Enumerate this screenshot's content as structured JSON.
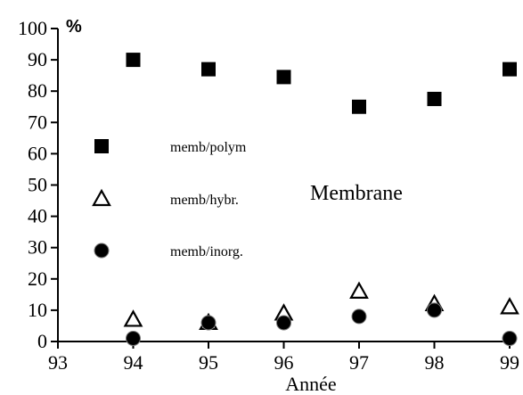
{
  "chart_data": {
    "type": "scatter",
    "title": "",
    "xlabel": "Année",
    "ylabel": "%",
    "annotation": "Membrane",
    "xlim": [
      93,
      99
    ],
    "ylim": [
      0,
      100
    ],
    "x_ticks": [
      "93",
      "94",
      "95",
      "96",
      "97",
      "98",
      "99"
    ],
    "y_ticks": [
      "0",
      "10",
      "20",
      "30",
      "40",
      "50",
      "60",
      "70",
      "80",
      "90",
      "100"
    ],
    "grid": false,
    "legend_position": "left",
    "series": [
      {
        "name": "memb/polym",
        "marker": "square",
        "color": "#000000",
        "points": [
          {
            "x": 94,
            "y": 90
          },
          {
            "x": 95,
            "y": 87
          },
          {
            "x": 96,
            "y": 84.5
          },
          {
            "x": 97,
            "y": 75
          },
          {
            "x": 98,
            "y": 77.5
          },
          {
            "x": 99,
            "y": 87
          }
        ]
      },
      {
        "name": "memb/hybr.",
        "marker": "triangle-open",
        "color": "#000000",
        "points": [
          {
            "x": 94,
            "y": 7
          },
          {
            "x": 95,
            "y": 6
          },
          {
            "x": 96,
            "y": 9
          },
          {
            "x": 97,
            "y": 16
          },
          {
            "x": 98,
            "y": 12
          },
          {
            "x": 99,
            "y": 11
          }
        ]
      },
      {
        "name": "memb/inorg.",
        "marker": "circle",
        "color": "#000000",
        "points": [
          {
            "x": 94,
            "y": 1
          },
          {
            "x": 95,
            "y": 6
          },
          {
            "x": 96,
            "y": 6
          },
          {
            "x": 97,
            "y": 8
          },
          {
            "x": 98,
            "y": 10
          },
          {
            "x": 99,
            "y": 1
          }
        ]
      }
    ]
  }
}
